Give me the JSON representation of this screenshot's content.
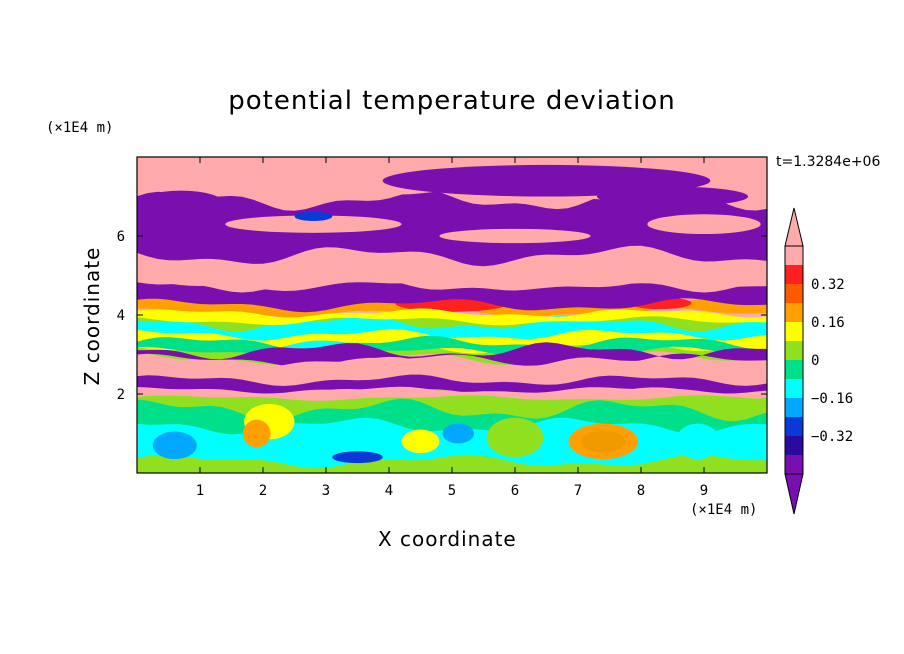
{
  "chart_data": {
    "type": "heatmap",
    "title": "potential temperature deviation",
    "xlabel": "X coordinate",
    "ylabel": "Z coordinate",
    "x_unit": "(×1E4 m)",
    "y_unit": "(×1E4 m)",
    "time_label": "t=1.3284e+06",
    "xlim": [
      0,
      10
    ],
    "ylim": [
      0,
      8
    ],
    "x_ticks": [
      1,
      2,
      3,
      4,
      5,
      6,
      7,
      8,
      9
    ],
    "y_ticks": [
      2,
      4,
      6
    ],
    "colorbar": {
      "levels": [
        -0.48,
        -0.4,
        -0.32,
        -0.24,
        -0.16,
        -0.08,
        0,
        0.08,
        0.16,
        0.24,
        0.32,
        0.4
      ],
      "tick_labels": [
        "0.32",
        "0.16",
        "0",
        "−0.16",
        "−0.32"
      ],
      "tick_values": [
        0.32,
        0.16,
        0,
        -0.16,
        -0.32
      ],
      "colors": [
        "#7a0fb0",
        "#2b0aa0",
        "#0a3ad6",
        "#00a8ff",
        "#00ffff",
        "#00e08a",
        "#90e020",
        "#ffff00",
        "#ffa000",
        "#ff5a00",
        "#ff2020",
        "#ffaaaa"
      ],
      "extend": "both"
    },
    "bands_top_to_bottom": [
      {
        "z_range": [
          7.9,
          7.0
        ],
        "value": "pink (>0.40) with purple (<-0.48) lenses"
      },
      {
        "z_range": [
          7.0,
          5.6
        ],
        "value": "purple (<-0.48)"
      },
      {
        "z_range": [
          5.6,
          4.6
        ],
        "value": "pink (>0.40)"
      },
      {
        "z_range": [
          4.6,
          4.2
        ],
        "value": "purple (<-0.48)"
      },
      {
        "z_range": [
          4.4,
          4.0
        ],
        "value": "red 0.32–0.40 near x=5"
      },
      {
        "z_range": [
          4.0,
          2.9
        ],
        "value": "mixed green/yellow/cyan (-0.16–0.16)"
      },
      {
        "z_range": [
          2.9,
          2.2
        ],
        "value": "pink and purple layers"
      },
      {
        "z_range": [
          2.0,
          0
        ],
        "value": "green/cyan boundary layer with orange eddies near x=2, 7.5"
      }
    ]
  }
}
